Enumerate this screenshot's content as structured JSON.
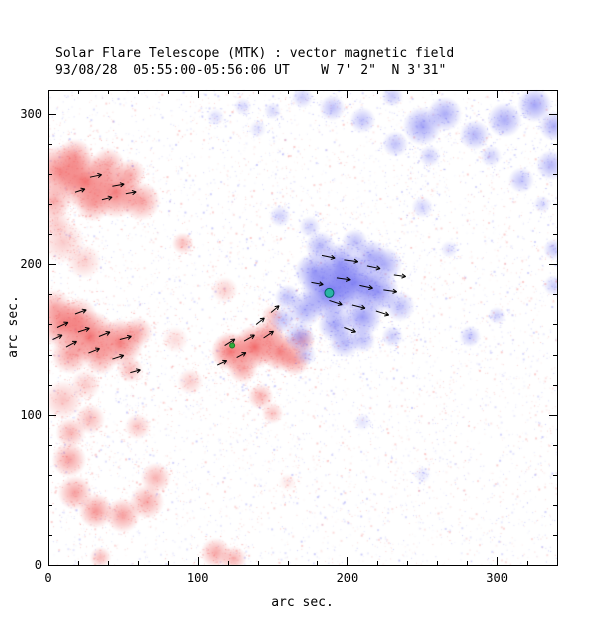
{
  "chart_data": {
    "type": "heatmap",
    "title": "Solar Flare Telescope (MTK) : vector magnetic field",
    "subtitle": "93/08/28  05:55:00-05:56:06 UT    W 7' 2\"  N 3'31\"",
    "xlabel": "arc sec.",
    "ylabel": "arc sec.",
    "xlim": [
      0,
      340
    ],
    "ylim": [
      0,
      316
    ],
    "xticks": [
      0,
      100,
      200,
      300
    ],
    "yticks": [
      0,
      100,
      200,
      300
    ],
    "minor_tick": 20,
    "grid": false,
    "colors": {
      "negative": "#f05050",
      "positive": "#5a5af0",
      "vector": "#000000"
    },
    "blobs": [
      [
        8,
        262,
        12,
        0.7,
        "r"
      ],
      [
        25,
        255,
        13,
        0.8,
        "r"
      ],
      [
        45,
        248,
        12,
        0.75,
        "r"
      ],
      [
        62,
        242,
        9,
        0.55,
        "r"
      ],
      [
        18,
        272,
        8,
        0.55,
        "r"
      ],
      [
        40,
        266,
        8,
        0.5,
        "r"
      ],
      [
        4,
        242,
        8,
        0.5,
        "r"
      ],
      [
        55,
        260,
        7,
        0.45,
        "r"
      ],
      [
        30,
        240,
        8,
        0.5,
        "r"
      ],
      [
        10,
        215,
        10,
        0.3,
        "r"
      ],
      [
        24,
        202,
        8,
        0.28,
        "r"
      ],
      [
        5,
        228,
        7,
        0.28,
        "r"
      ],
      [
        90,
        214,
        5,
        0.4,
        "r"
      ],
      [
        10,
        160,
        11,
        0.75,
        "r"
      ],
      [
        28,
        152,
        12,
        0.8,
        "r"
      ],
      [
        48,
        148,
        11,
        0.75,
        "r"
      ],
      [
        15,
        140,
        9,
        0.55,
        "r"
      ],
      [
        35,
        138,
        8,
        0.5,
        "r"
      ],
      [
        60,
        155,
        7,
        0.45,
        "r"
      ],
      [
        4,
        172,
        8,
        0.45,
        "r"
      ],
      [
        55,
        130,
        6,
        0.4,
        "r"
      ],
      [
        20,
        165,
        9,
        0.5,
        "r"
      ],
      [
        10,
        110,
        9,
        0.35,
        "r"
      ],
      [
        25,
        120,
        7,
        0.3,
        "r"
      ],
      [
        85,
        150,
        6,
        0.22,
        "r"
      ],
      [
        14,
        70,
        8,
        0.55,
        "r"
      ],
      [
        18,
        48,
        8,
        0.55,
        "r"
      ],
      [
        32,
        36,
        8,
        0.6,
        "r"
      ],
      [
        50,
        33,
        8,
        0.55,
        "r"
      ],
      [
        66,
        42,
        8,
        0.5,
        "r"
      ],
      [
        72,
        58,
        7,
        0.45,
        "r"
      ],
      [
        15,
        88,
        7,
        0.45,
        "r"
      ],
      [
        28,
        97,
        7,
        0.4,
        "r"
      ],
      [
        60,
        92,
        6,
        0.35,
        "r"
      ],
      [
        35,
        5,
        5,
        0.4,
        "r"
      ],
      [
        112,
        8,
        7,
        0.5,
        "r"
      ],
      [
        124,
        4,
        6,
        0.45,
        "r"
      ],
      [
        160,
        55,
        4,
        0.15,
        "r"
      ],
      [
        122,
        142,
        9,
        0.8,
        "r"
      ],
      [
        138,
        145,
        10,
        0.85,
        "r"
      ],
      [
        155,
        142,
        9,
        0.75,
        "r"
      ],
      [
        165,
        136,
        7,
        0.55,
        "r"
      ],
      [
        130,
        131,
        7,
        0.55,
        "r"
      ],
      [
        148,
        154,
        7,
        0.55,
        "r"
      ],
      [
        170,
        149,
        6,
        0.45,
        "r"
      ],
      [
        150,
        166,
        5,
        0.35,
        "r"
      ],
      [
        142,
        112,
        6,
        0.45,
        "r"
      ],
      [
        150,
        101,
        5,
        0.35,
        "r"
      ],
      [
        95,
        122,
        6,
        0.3,
        "r"
      ],
      [
        118,
        183,
        6,
        0.28,
        "r"
      ],
      [
        188,
        182,
        13,
        0.85,
        "b"
      ],
      [
        205,
        188,
        12,
        0.75,
        "b"
      ],
      [
        220,
        182,
        10,
        0.65,
        "b"
      ],
      [
        195,
        200,
        10,
        0.65,
        "b"
      ],
      [
        178,
        195,
        9,
        0.6,
        "b"
      ],
      [
        210,
        165,
        9,
        0.6,
        "b"
      ],
      [
        225,
        200,
        8,
        0.5,
        "b"
      ],
      [
        192,
        160,
        8,
        0.55,
        "b"
      ],
      [
        172,
        170,
        8,
        0.5,
        "b"
      ],
      [
        235,
        172,
        7,
        0.4,
        "b"
      ],
      [
        182,
        212,
        7,
        0.45,
        "b"
      ],
      [
        205,
        215,
        6,
        0.4,
        "b"
      ],
      [
        168,
        152,
        7,
        0.45,
        "b"
      ],
      [
        157,
        163,
        6,
        0.38,
        "b"
      ],
      [
        160,
        178,
        6,
        0.4,
        "b"
      ],
      [
        230,
        152,
        5,
        0.32,
        "b"
      ],
      [
        215,
        205,
        8,
        0.5,
        "b"
      ],
      [
        198,
        148,
        7,
        0.45,
        "b"
      ],
      [
        210,
        150,
        6,
        0.4,
        "b"
      ],
      [
        172,
        140,
        5,
        0.3,
        "b"
      ],
      [
        155,
        232,
        5,
        0.3,
        "b"
      ],
      [
        175,
        225,
        5,
        0.3,
        "b"
      ],
      [
        250,
        238,
        5,
        0.28,
        "b"
      ],
      [
        250,
        292,
        9,
        0.55,
        "b"
      ],
      [
        265,
        300,
        8,
        0.5,
        "b"
      ],
      [
        285,
        286,
        7,
        0.45,
        "b"
      ],
      [
        305,
        296,
        8,
        0.5,
        "b"
      ],
      [
        325,
        306,
        8,
        0.55,
        "b"
      ],
      [
        338,
        292,
        7,
        0.5,
        "b"
      ],
      [
        336,
        266,
        7,
        0.45,
        "b"
      ],
      [
        316,
        256,
        6,
        0.38,
        "b"
      ],
      [
        232,
        280,
        6,
        0.38,
        "b"
      ],
      [
        210,
        296,
        6,
        0.38,
        "b"
      ],
      [
        190,
        304,
        6,
        0.4,
        "b"
      ],
      [
        170,
        311,
        5,
        0.32,
        "b"
      ],
      [
        255,
        272,
        5,
        0.32,
        "b"
      ],
      [
        296,
        272,
        5,
        0.3,
        "b"
      ],
      [
        230,
        312,
        5,
        0.35,
        "b"
      ],
      [
        150,
        302,
        4,
        0.25,
        "b"
      ],
      [
        140,
        290,
        4,
        0.2,
        "b"
      ],
      [
        130,
        305,
        4,
        0.25,
        "b"
      ],
      [
        112,
        298,
        4,
        0.22,
        "b"
      ],
      [
        282,
        152,
        5,
        0.35,
        "b"
      ],
      [
        300,
        166,
        4,
        0.28,
        "b"
      ],
      [
        338,
        186,
        5,
        0.3,
        "b"
      ],
      [
        338,
        210,
        5,
        0.35,
        "b"
      ],
      [
        330,
        240,
        4,
        0.25,
        "b"
      ],
      [
        268,
        210,
        4,
        0.22,
        "b"
      ],
      [
        210,
        95,
        4,
        0.18,
        "b"
      ],
      [
        250,
        60,
        4,
        0.15,
        "b"
      ]
    ],
    "vectors": [
      [
        6,
        158,
        25,
        8
      ],
      [
        20,
        155,
        18,
        8
      ],
      [
        34,
        152,
        22,
        8
      ],
      [
        48,
        150,
        15,
        8
      ],
      [
        12,
        145,
        28,
        8
      ],
      [
        27,
        141,
        22,
        8
      ],
      [
        43,
        137,
        18,
        8
      ],
      [
        18,
        167,
        20,
        8
      ],
      [
        55,
        128,
        15,
        7
      ],
      [
        3,
        150,
        25,
        7
      ],
      [
        28,
        258,
        12,
        8
      ],
      [
        43,
        252,
        10,
        8
      ],
      [
        18,
        248,
        18,
        7
      ],
      [
        36,
        243,
        14,
        7
      ],
      [
        52,
        247,
        10,
        7
      ],
      [
        118,
        146,
        32,
        8
      ],
      [
        131,
        149,
        30,
        8
      ],
      [
        144,
        151,
        34,
        8
      ],
      [
        126,
        138,
        28,
        7
      ],
      [
        139,
        160,
        38,
        7
      ],
      [
        149,
        168,
        40,
        7
      ],
      [
        113,
        133,
        25,
        7
      ],
      [
        183,
        206,
        -12,
        9
      ],
      [
        198,
        203,
        -8,
        9
      ],
      [
        213,
        199,
        -12,
        9
      ],
      [
        193,
        191,
        -8,
        9
      ],
      [
        208,
        186,
        -12,
        9
      ],
      [
        224,
        183,
        -8,
        9
      ],
      [
        188,
        176,
        -18,
        9
      ],
      [
        203,
        173,
        -14,
        9
      ],
      [
        219,
        169,
        -18,
        9
      ],
      [
        198,
        158,
        -22,
        8
      ],
      [
        231,
        193,
        -8,
        8
      ],
      [
        176,
        188,
        -10,
        8
      ]
    ],
    "markers": [
      {
        "x": 188,
        "y": 181,
        "r": 4.5,
        "color": "#2ab5a5",
        "stroke": "#015f5f"
      },
      {
        "x": 123,
        "y": 146,
        "r": 2.5,
        "color": "#2fae3c",
        "stroke": "#1d7a28"
      }
    ]
  }
}
